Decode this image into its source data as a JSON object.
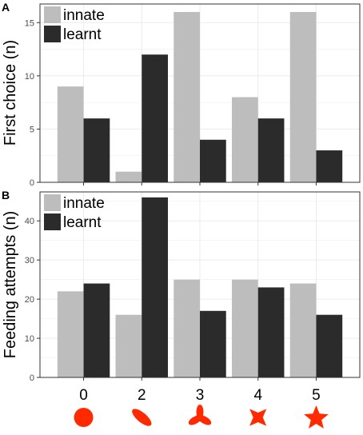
{
  "chart_data": [
    {
      "panel": "A",
      "type": "bar",
      "categories": [
        "0",
        "2",
        "3",
        "4",
        "5"
      ],
      "ylabel": "First choice (n)",
      "ylim": [
        0,
        16.75
      ],
      "yticks": [
        0,
        5,
        10,
        15
      ],
      "grid": true,
      "legend": "top-left",
      "series": [
        {
          "name": "innate",
          "color": "#bdbdbd",
          "values": [
            9,
            1,
            16,
            8,
            16
          ]
        },
        {
          "name": "learnt",
          "color": "#2b2b2b",
          "values": [
            6,
            12,
            4,
            6,
            3
          ]
        }
      ]
    },
    {
      "panel": "B",
      "type": "bar",
      "categories": [
        "0",
        "2",
        "3",
        "4",
        "5"
      ],
      "ylabel": "Feeding attempts (n)",
      "ylim": [
        0,
        47.4
      ],
      "yticks": [
        0,
        10,
        20,
        30,
        40
      ],
      "grid": true,
      "legend": "top-left",
      "series": [
        {
          "name": "innate",
          "color": "#bdbdbd",
          "values": [
            22,
            16,
            25,
            25,
            24
          ]
        },
        {
          "name": "learnt",
          "color": "#2b2b2b",
          "values": [
            24,
            46,
            17,
            23,
            16
          ]
        }
      ]
    }
  ],
  "x_shape_icons": [
    "circle-icon",
    "ellipse-icon",
    "three-lobe-icon",
    "four-point-star-icon",
    "five-point-star-icon"
  ],
  "icon_color": "#ff2a00",
  "grid_color": "#ebebeb",
  "border_color": "#333333"
}
